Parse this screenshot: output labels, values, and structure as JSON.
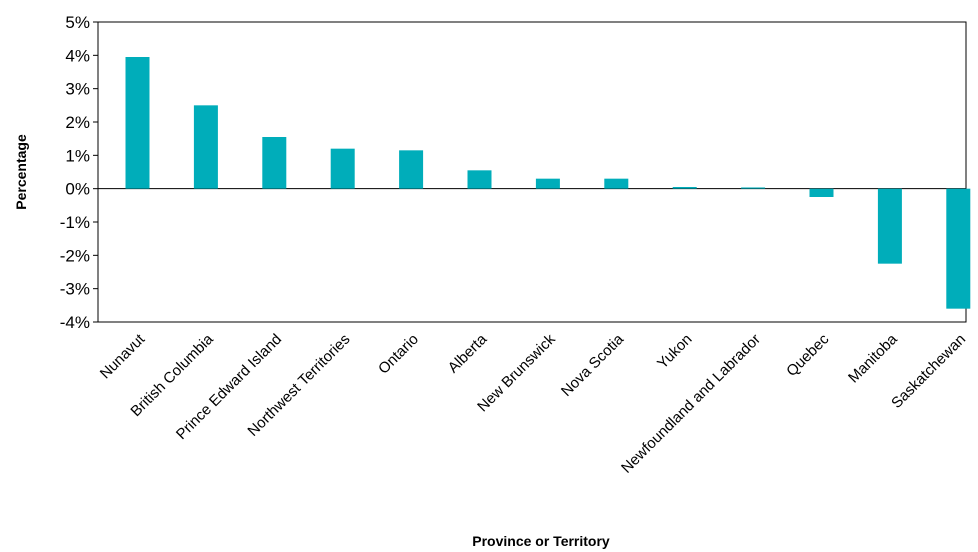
{
  "chart_data": {
    "type": "bar",
    "title": "",
    "xlabel": "Province or Territory",
    "ylabel": "Percentage",
    "ylim": [
      -4,
      5
    ],
    "yticks": [
      "5%",
      "4%",
      "3%",
      "2%",
      "1%",
      "0%",
      "-1%",
      "-2%",
      "-3%",
      "-4%"
    ],
    "ytick_values": [
      5,
      4,
      3,
      2,
      1,
      0,
      -1,
      -2,
      -3,
      -4
    ],
    "categories": [
      "Nunavut",
      "British Columbia",
      "Prince Edward Island",
      "Northwest Territories",
      "Ontario",
      "Alberta",
      "New Brunswick",
      "Nova Scotia",
      "Yukon",
      "Newfoundland and Labrador",
      "Quebec",
      "Manitoba",
      "Saskatchewan"
    ],
    "values": [
      3.95,
      2.5,
      1.55,
      1.2,
      1.15,
      0.55,
      0.3,
      0.3,
      0.05,
      0.03,
      -0.25,
      -2.25,
      -3.6
    ],
    "bar_color": "#00adba",
    "grid": false,
    "legend": "none"
  }
}
